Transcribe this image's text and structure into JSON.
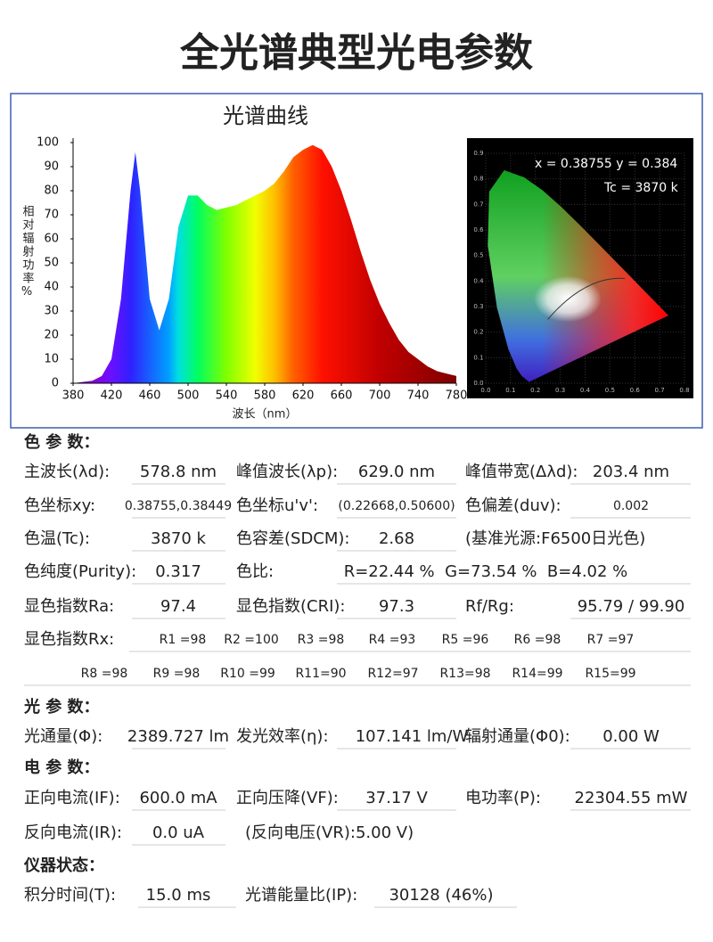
{
  "title": "全光谱典型光电参数",
  "spectrum": {
    "type": "area",
    "title": "光谱曲线",
    "y_label": "相对辐射功率%",
    "x_label": "波长（nm）",
    "x": [
      380,
      390,
      400,
      410,
      420,
      430,
      440,
      445,
      450,
      460,
      470,
      480,
      490,
      500,
      510,
      520,
      530,
      540,
      550,
      560,
      570,
      580,
      590,
      600,
      610,
      620,
      630,
      640,
      650,
      660,
      670,
      680,
      690,
      700,
      710,
      720,
      730,
      740,
      750,
      760,
      770,
      780
    ],
    "values": [
      0,
      0.5,
      1,
      3,
      10,
      35,
      80,
      96,
      80,
      35,
      22,
      35,
      65,
      78,
      78,
      74,
      72,
      73,
      74,
      76,
      78,
      80,
      83,
      88,
      94,
      97,
      99,
      97,
      90,
      80,
      68,
      55,
      43,
      33,
      25,
      18,
      13,
      10,
      7,
      5,
      4,
      3
    ],
    "xlim": [
      380,
      780
    ],
    "ylim": [
      0,
      100
    ],
    "xticks": [
      380,
      420,
      460,
      500,
      540,
      580,
      620,
      660,
      700,
      740,
      780
    ],
    "yticks": [
      0,
      10,
      20,
      30,
      40,
      50,
      60,
      70,
      80,
      90,
      100
    ]
  },
  "cie": {
    "readout": "x = 0.38755 y = 0.384",
    "tc": "Tc = 3870 k",
    "xticks": [
      {
        "value": 0,
        "label": "0.0"
      },
      {
        "value": 0.1,
        "label": "0.1"
      },
      {
        "value": 0.2,
        "label": "0.2"
      },
      {
        "value": 0.3,
        "label": "0.3"
      },
      {
        "value": 0.4,
        "label": "0.4"
      },
      {
        "value": 0.5,
        "label": "0.5"
      },
      {
        "value": 0.6,
        "label": "0.6"
      },
      {
        "value": 0.7,
        "label": "0.7"
      },
      {
        "value": 0.8,
        "label": "0.8"
      }
    ],
    "yticks": [
      {
        "value": 0,
        "label": "0.0"
      },
      {
        "value": 0.1,
        "label": "0.1"
      },
      {
        "value": 0.2,
        "label": "0.2"
      },
      {
        "value": 0.3,
        "label": "0.3"
      },
      {
        "value": 0.4,
        "label": "0.4"
      },
      {
        "value": 0.5,
        "label": "0.5"
      },
      {
        "value": 0.6,
        "label": "0.6"
      },
      {
        "value": 0.7,
        "label": "0.7"
      },
      {
        "value": 0.8,
        "label": "0.8"
      },
      {
        "value": 0.9,
        "label": "0.9"
      }
    ]
  },
  "sections": [
    {
      "heading": "色 参 数：",
      "rows": [
        [
          {
            "label": "主波长(λd):",
            "value": "578.8 nm"
          },
          {
            "label": "峰值波长(λp):",
            "value": "629.0 nm"
          },
          {
            "label": "峰值带宽(Δλd):",
            "value": "203.4 nm"
          }
        ],
        [
          {
            "label": "色坐标xy:",
            "value": "0.38755,0.38449"
          },
          {
            "label": "色坐标u'v':",
            "value": "(0.22668,0.50600)"
          },
          {
            "label": "色偏差(duv):",
            "value": "0.002"
          }
        ],
        [
          {
            "label": "色温(Tc):",
            "value": "3870 k"
          },
          {
            "label": "色容差(SDCM):",
            "value": "2.68"
          },
          {
            "label": "(基准光源:F6500日光色)"
          }
        ],
        [
          {
            "label": "色纯度(Purity):",
            "value": "0.317"
          },
          {
            "label": "色比:",
            "value": "R=22.44 %  G=73.54 %  B=4.02 %"
          }
        ],
        [
          {
            "label": "显色指数Ra:",
            "value": "97.4"
          },
          {
            "label": "显色指数(CRI):",
            "value": "97.3"
          },
          {
            "label": "Rf/Rg:",
            "value": "95.79 / 99.90"
          }
        ]
      ],
      "rx": {
        "label": "显色指数Rx:",
        "values": [
          "R1 =98",
          "R2 =100",
          "R3 =98",
          "R4 =93",
          "R5 =96",
          "R6 =98",
          "R7 =97",
          "R8 =98",
          "R9 =98",
          "R10 =99",
          "R11=90",
          "R12=97",
          "R13=98",
          "R14=99",
          "R15=99"
        ]
      }
    },
    {
      "heading": "光 参 数：",
      "rows": [
        [
          {
            "label": "光通量(Φ):",
            "value": "2389.727 lm"
          },
          {
            "label": "发光效率(η):",
            "value": "107.141 lm/W"
          },
          {
            "label": "辐射通量(Φ0):",
            "value": "0.00 W"
          }
        ]
      ]
    },
    {
      "heading": "电 参 数：",
      "rows": [
        [
          {
            "label": "正向电流(IF):",
            "value": "600.0 mA"
          },
          {
            "label": "正向压降(VF):",
            "value": "37.17 V"
          },
          {
            "label": "电功率(P):",
            "value": "22304.55 mW"
          }
        ],
        [
          {
            "label": "反向电流(IR):",
            "value": "0.0 uA"
          },
          {
            "label": "(反向电压(VR):5.00 V)"
          }
        ]
      ]
    },
    {
      "heading": "仪器状态：",
      "rows": [
        [
          {
            "label": "积分时间(T):",
            "value": "15.0 ms"
          },
          {
            "label": "光谱能量比(IP):",
            "value": "30128 (46%)"
          }
        ]
      ]
    }
  ]
}
